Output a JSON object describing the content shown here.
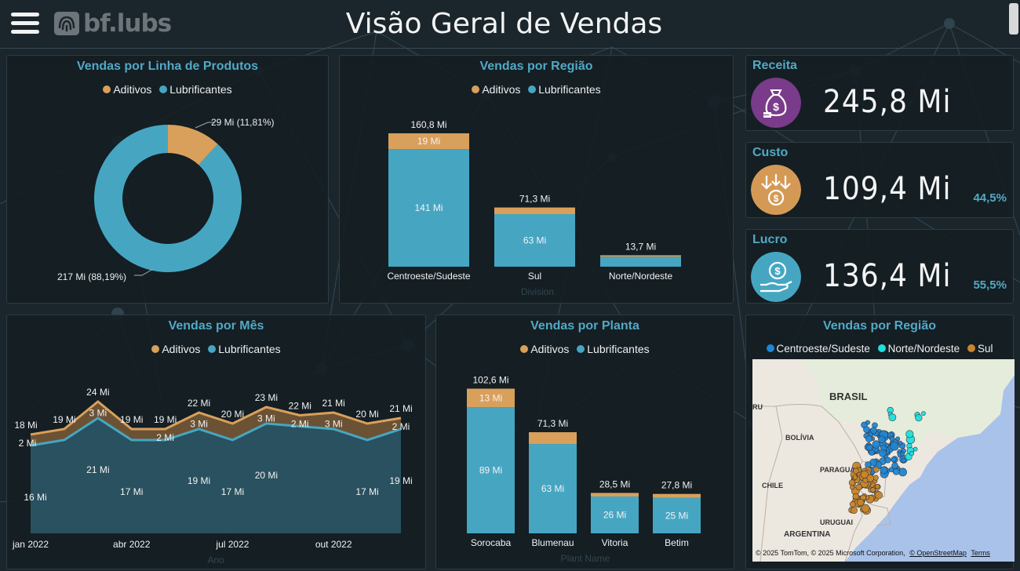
{
  "header": {
    "menu_icon": "hamburger-menu-icon",
    "logo_text": "bf.lubs",
    "title": "Visão Geral de Vendas"
  },
  "colors": {
    "aditivos": "#d9a05b",
    "lubrificantes": "#46a6c2",
    "centroeste": "#1f86d4",
    "norte": "#1fe0e0",
    "sul": "#c8862c",
    "accent": "#52a9c5"
  },
  "legend": {
    "aditivos": "Aditivos",
    "lubrificantes": "Lubrificantes"
  },
  "donut": {
    "title": "Vendas por Linha de Produtos",
    "label_aditivos": "29 Mi (11,81%)",
    "label_lubrificantes": "217 Mi (88,19%)",
    "chart_data": {
      "type": "pie",
      "categories": [
        "Aditivos",
        "Lubrificantes"
      ],
      "values": [
        29,
        217
      ],
      "percents": [
        11.81,
        88.19
      ]
    }
  },
  "region_bars": {
    "title": "Vendas por Região",
    "axis_title": "Division",
    "chart_data": {
      "type": "bar",
      "stacked": true,
      "categories": [
        "Centroeste/Sudeste",
        "Sul",
        "Norte/Nordeste"
      ],
      "series": [
        {
          "name": "Lubrificantes",
          "values": [
            141,
            63,
            12
          ],
          "labels": [
            "141 Mi",
            "63 Mi",
            ""
          ]
        },
        {
          "name": "Aditivos",
          "values": [
            19,
            8,
            1.7
          ],
          "labels": [
            "19 Mi",
            "",
            ""
          ]
        }
      ],
      "totals": [
        160.8,
        71.3,
        13.7
      ],
      "total_labels": [
        "160,8 Mi",
        "71,3 Mi",
        "13,7 Mi"
      ],
      "ylim": [
        0,
        175
      ]
    }
  },
  "kpis": [
    {
      "title": "Receita",
      "value": "245,8 Mi",
      "pct": "",
      "icon": "money-bag-icon",
      "color": "#7a3b8a"
    },
    {
      "title": "Custo",
      "value": "109,4 Mi",
      "pct": "44,5%",
      "icon": "cost-down-arrows-icon",
      "color": "#d49a55"
    },
    {
      "title": "Lucro",
      "value": "136,4 Mi",
      "pct": "55,5%",
      "icon": "profit-hand-coin-icon",
      "color": "#46a6c2"
    }
  ],
  "month_chart": {
    "title": "Vendas por Mês",
    "axis_title": "Ano",
    "chart_data": {
      "type": "area",
      "stacked": true,
      "x": [
        "jan 2022",
        "fev 2022",
        "mar 2022",
        "abr 2022",
        "mai 2022",
        "jun 2022",
        "jul 2022",
        "ago 2022",
        "set 2022",
        "out 2022",
        "nov 2022",
        "dez 2022"
      ],
      "tick_labels": [
        "jan 2022",
        "abr 2022",
        "jul 2022",
        "out 2022"
      ],
      "series": [
        {
          "name": "Lubrificantes",
          "values": [
            16,
            17,
            21,
            17,
            17,
            19,
            17,
            20,
            19.5,
            19,
            17,
            19
          ],
          "labels": [
            "16 Mi",
            "",
            "21 Mi",
            "17 Mi",
            "",
            "19 Mi",
            "17 Mi",
            "20 Mi",
            "",
            "",
            "17 Mi",
            "19 Mi"
          ]
        },
        {
          "name": "Aditivos",
          "values": [
            2,
            2,
            3,
            2,
            2,
            3,
            3,
            3,
            2,
            3,
            3,
            2
          ],
          "labels": [
            "2 Mi",
            "",
            "3 Mi",
            "",
            "2 Mi",
            "3 Mi",
            "",
            "3 Mi",
            "2 Mi",
            "3 Mi",
            "",
            "2 Mi"
          ]
        }
      ],
      "totals": [
        18,
        19,
        24,
        19,
        19,
        22,
        20,
        23,
        22,
        21,
        20,
        21
      ],
      "total_labels": [
        "18 Mi",
        "19 Mi",
        "24 Mi",
        "19 Mi",
        "19 Mi",
        "22 Mi",
        "20 Mi",
        "23 Mi",
        "22 Mi",
        "21 Mi",
        "20 Mi",
        "21 Mi"
      ],
      "ylim": [
        0,
        26
      ]
    }
  },
  "plant_bars": {
    "title": "Vendas por Planta",
    "axis_title": "Plant Name",
    "chart_data": {
      "type": "bar",
      "stacked": true,
      "categories": [
        "Sorocaba",
        "Blumenau",
        "Vitoria",
        "Betim"
      ],
      "series": [
        {
          "name": "Lubrificantes",
          "values": [
            89,
            63,
            26,
            25
          ],
          "labels": [
            "89 Mi",
            "63 Mi",
            "26 Mi",
            "25 Mi"
          ]
        },
        {
          "name": "Aditivos",
          "values": [
            13,
            8.3,
            2.5,
            2.8
          ],
          "labels": [
            "13 Mi",
            "",
            "",
            ""
          ]
        }
      ],
      "totals": [
        102.6,
        71.3,
        28.5,
        27.8
      ],
      "total_labels": [
        "102,6 Mi",
        "71,3 Mi",
        "28,5 Mi",
        "27,8 Mi"
      ],
      "ylim": [
        0,
        115
      ]
    }
  },
  "map_panel": {
    "title": "Vendas por Região",
    "legend": [
      "Centroeste/Sudeste",
      "Norte/Nordeste",
      "Sul"
    ],
    "labels": {
      "brasil": "BRASIL",
      "bolivia": "BOLÍVIA",
      "paraguai": "PARAGUAI",
      "chile": "CHILE",
      "uruguai": "URUGUAI",
      "argentina": "ARGENTINA",
      "peru": "RU"
    },
    "attribution": "© 2025 TomTom, © 2025 Microsoft Corporation,",
    "attribution_osm": "© OpenStreetMap",
    "attribution_terms": "Terms"
  }
}
